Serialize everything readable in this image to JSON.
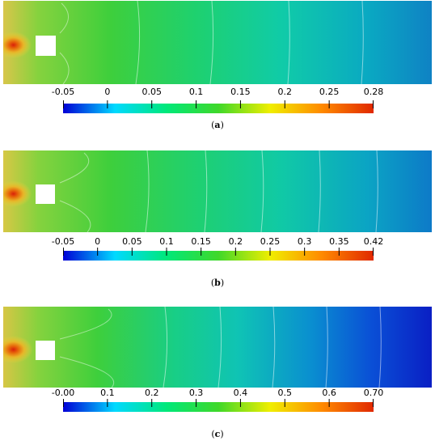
{
  "panels": [
    {
      "label": "a",
      "ticks": [
        "-0.05",
        "0",
        "0.05",
        "0.1",
        "0.15",
        "0.2",
        "0.25",
        "0.28"
      ]
    },
    {
      "label": "b",
      "ticks": [
        "-0.05",
        "0",
        "0.05",
        "0.1",
        "0.15",
        "0.2",
        "0.25",
        "0.3",
        "0.35",
        "0.42"
      ]
    },
    {
      "label": "c",
      "ticks": [
        "-0.00",
        "0.1",
        "0.2",
        "0.3",
        "0.4",
        "0.5",
        "0.6",
        "0.70"
      ]
    }
  ],
  "colormap": [
    "#0000d6",
    "#00d9ff",
    "#00e87a",
    "#3fd82a",
    "#f0ee00",
    "#ff8a00",
    "#e02800"
  ]
}
